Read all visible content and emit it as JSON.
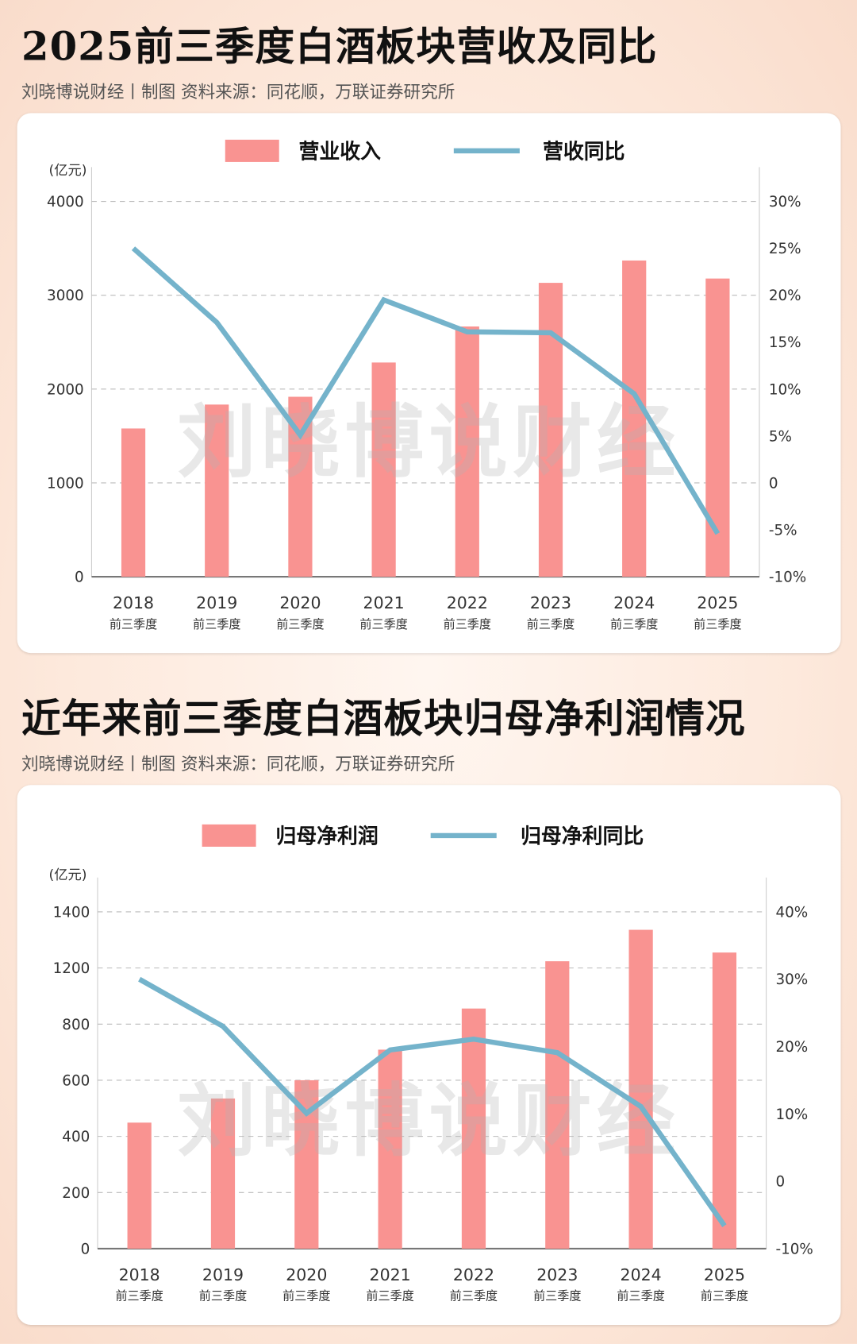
{
  "section1": {
    "title": "2025前三季度白酒板块营收及同比",
    "subtitle": "刘晓博说财经丨制图    资料来源：同花顺，万联证券研究所"
  },
  "section2": {
    "title": "近年来前三季度白酒板块归母净利润情况",
    "subtitle": "刘晓博说财经丨制图    资料来源：同花顺，万联证券研究所"
  },
  "watermark": "刘晓博说财经",
  "colors": {
    "bar": "#f99391",
    "line": "#74b3cb"
  },
  "chart_data": [
    {
      "type": "bar+line",
      "categories": [
        "2018",
        "2019",
        "2020",
        "2021",
        "2022",
        "2023",
        "2024",
        "2025"
      ],
      "category_sublabel": "前三季度",
      "ylabel": "(亿元)",
      "yticks": [
        "0",
        "1000",
        "2000",
        "3000",
        "4000"
      ],
      "ylim": [
        0,
        4000
      ],
      "y2ticks": [
        "-10%",
        "-5%",
        "0",
        "5%",
        "10%",
        "15%",
        "20%",
        "25%",
        "30%"
      ],
      "y2lim": [
        -10,
        30
      ],
      "grid": true,
      "legend": "top-center",
      "series": [
        {
          "name": "营业收入",
          "kind": "bar",
          "axis": "left",
          "values": [
            1580,
            1835,
            1918,
            2283,
            2667,
            3132,
            3370,
            3178
          ]
        },
        {
          "name": "营收同比",
          "kind": "line",
          "axis": "right",
          "values": [
            25.0,
            17.1,
            5.1,
            19.5,
            16.1,
            16.0,
            9.5,
            -5.4
          ]
        }
      ]
    },
    {
      "type": "bar+line",
      "categories": [
        "2018",
        "2019",
        "2020",
        "2021",
        "2022",
        "2023",
        "2024",
        "2025"
      ],
      "category_sublabel": "前三季度",
      "ylabel": "(亿元)",
      "yticks": [
        "0",
        "200",
        "400",
        "600",
        "800",
        "1200",
        "1400"
      ],
      "ytick_values": [
        0,
        200,
        400,
        600,
        800,
        1200,
        1400
      ],
      "y2ticks": [
        "-10%",
        "0",
        "10%",
        "20%",
        "30%",
        "40%"
      ],
      "y2lim": [
        -10,
        40
      ],
      "grid": true,
      "legend": "top-center",
      "series": [
        {
          "name": "归母净利润",
          "kind": "bar",
          "axis": "left",
          "values": [
            449,
            535,
            600,
            709,
            911,
            1224,
            1336,
            1255
          ]
        },
        {
          "name": "归母净利同比",
          "kind": "line",
          "axis": "right",
          "values": [
            30.0,
            23.0,
            10.1,
            19.5,
            21.1,
            19.1,
            11.1,
            -6.6
          ]
        }
      ]
    }
  ]
}
